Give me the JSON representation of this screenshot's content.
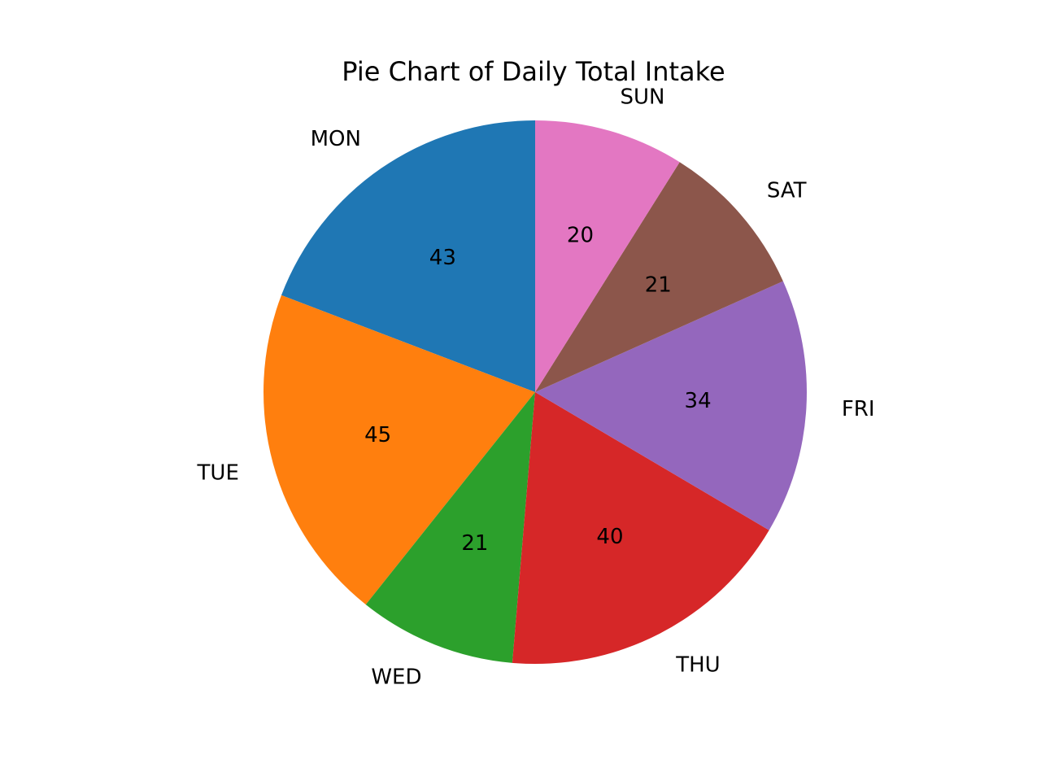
{
  "chart_data": {
    "type": "pie",
    "title": "Pie Chart of Daily Total Intake",
    "categories": [
      "MON",
      "TUE",
      "WED",
      "THU",
      "FRI",
      "SAT",
      "SUN"
    ],
    "values": [
      43,
      45,
      21,
      40,
      34,
      21,
      20
    ],
    "value_labels": [
      "43",
      "45",
      "21",
      "40",
      "34",
      "21",
      "20"
    ],
    "colors": [
      "#1f77b4",
      "#ff7f0e",
      "#2ca02c",
      "#d62728",
      "#9467bd",
      "#8c564b",
      "#e377c2"
    ],
    "start_angle_deg": 90,
    "direction": "counterclockwise",
    "legend": "none"
  }
}
